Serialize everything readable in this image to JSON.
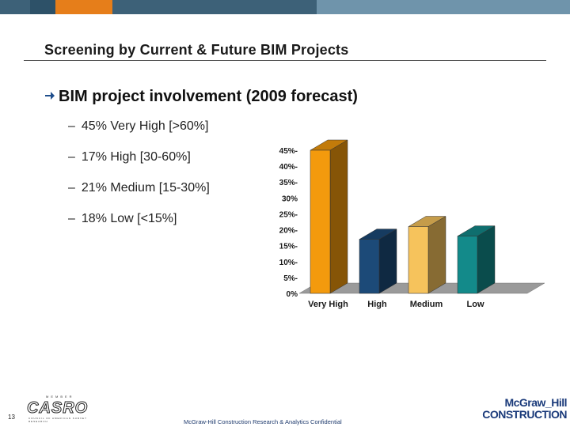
{
  "header": {
    "stripe_colors": [
      "#3d6178",
      "#2d5168",
      "#e67e1a",
      "#3d6178",
      "#6f94ab"
    ]
  },
  "title": "Screening by Current & Future BIM Projects",
  "bullet": {
    "icon": "arrow-right-icon",
    "text": "BIM project involvement (2009 forecast)"
  },
  "sub_bullets": [
    {
      "dash": "–",
      "text": "45% Very High [>60%]"
    },
    {
      "dash": "–",
      "text": "17% High [30-60%]"
    },
    {
      "dash": "–",
      "text": "21% Medium [15-30%]"
    },
    {
      "dash": "–",
      "text": "18% Low [<15%]"
    }
  ],
  "chart_data": {
    "type": "bar",
    "categories": [
      "Very High",
      "High",
      "Medium",
      "Low"
    ],
    "values": [
      45,
      17,
      21,
      18
    ],
    "colors": [
      "#f39a0d",
      "#1c4a78",
      "#f6c35c",
      "#138a8a"
    ],
    "ylim": [
      0,
      45
    ],
    "yticks": [
      0,
      5,
      10,
      15,
      20,
      25,
      30,
      35,
      40,
      45
    ],
    "ytick_labels": [
      "0%",
      "5%-",
      "10%-",
      "15%-",
      "20%-",
      "25%-",
      "30%",
      "35%-",
      "40%-",
      "45%-"
    ],
    "title": "",
    "xlabel": "",
    "ylabel": ""
  },
  "footer": {
    "page_number": "13",
    "casro_small": "MEMBER",
    "casro_logo": "CASRO",
    "casro_tag": "COUNCIL OF AMERICAN SURVEY RESEARCH",
    "confidential": "McGraw-Hill Construction Research & Analytics Confidential",
    "brand_line1": "McGraw_Hill",
    "brand_line2": "CONSTRUCTION"
  }
}
